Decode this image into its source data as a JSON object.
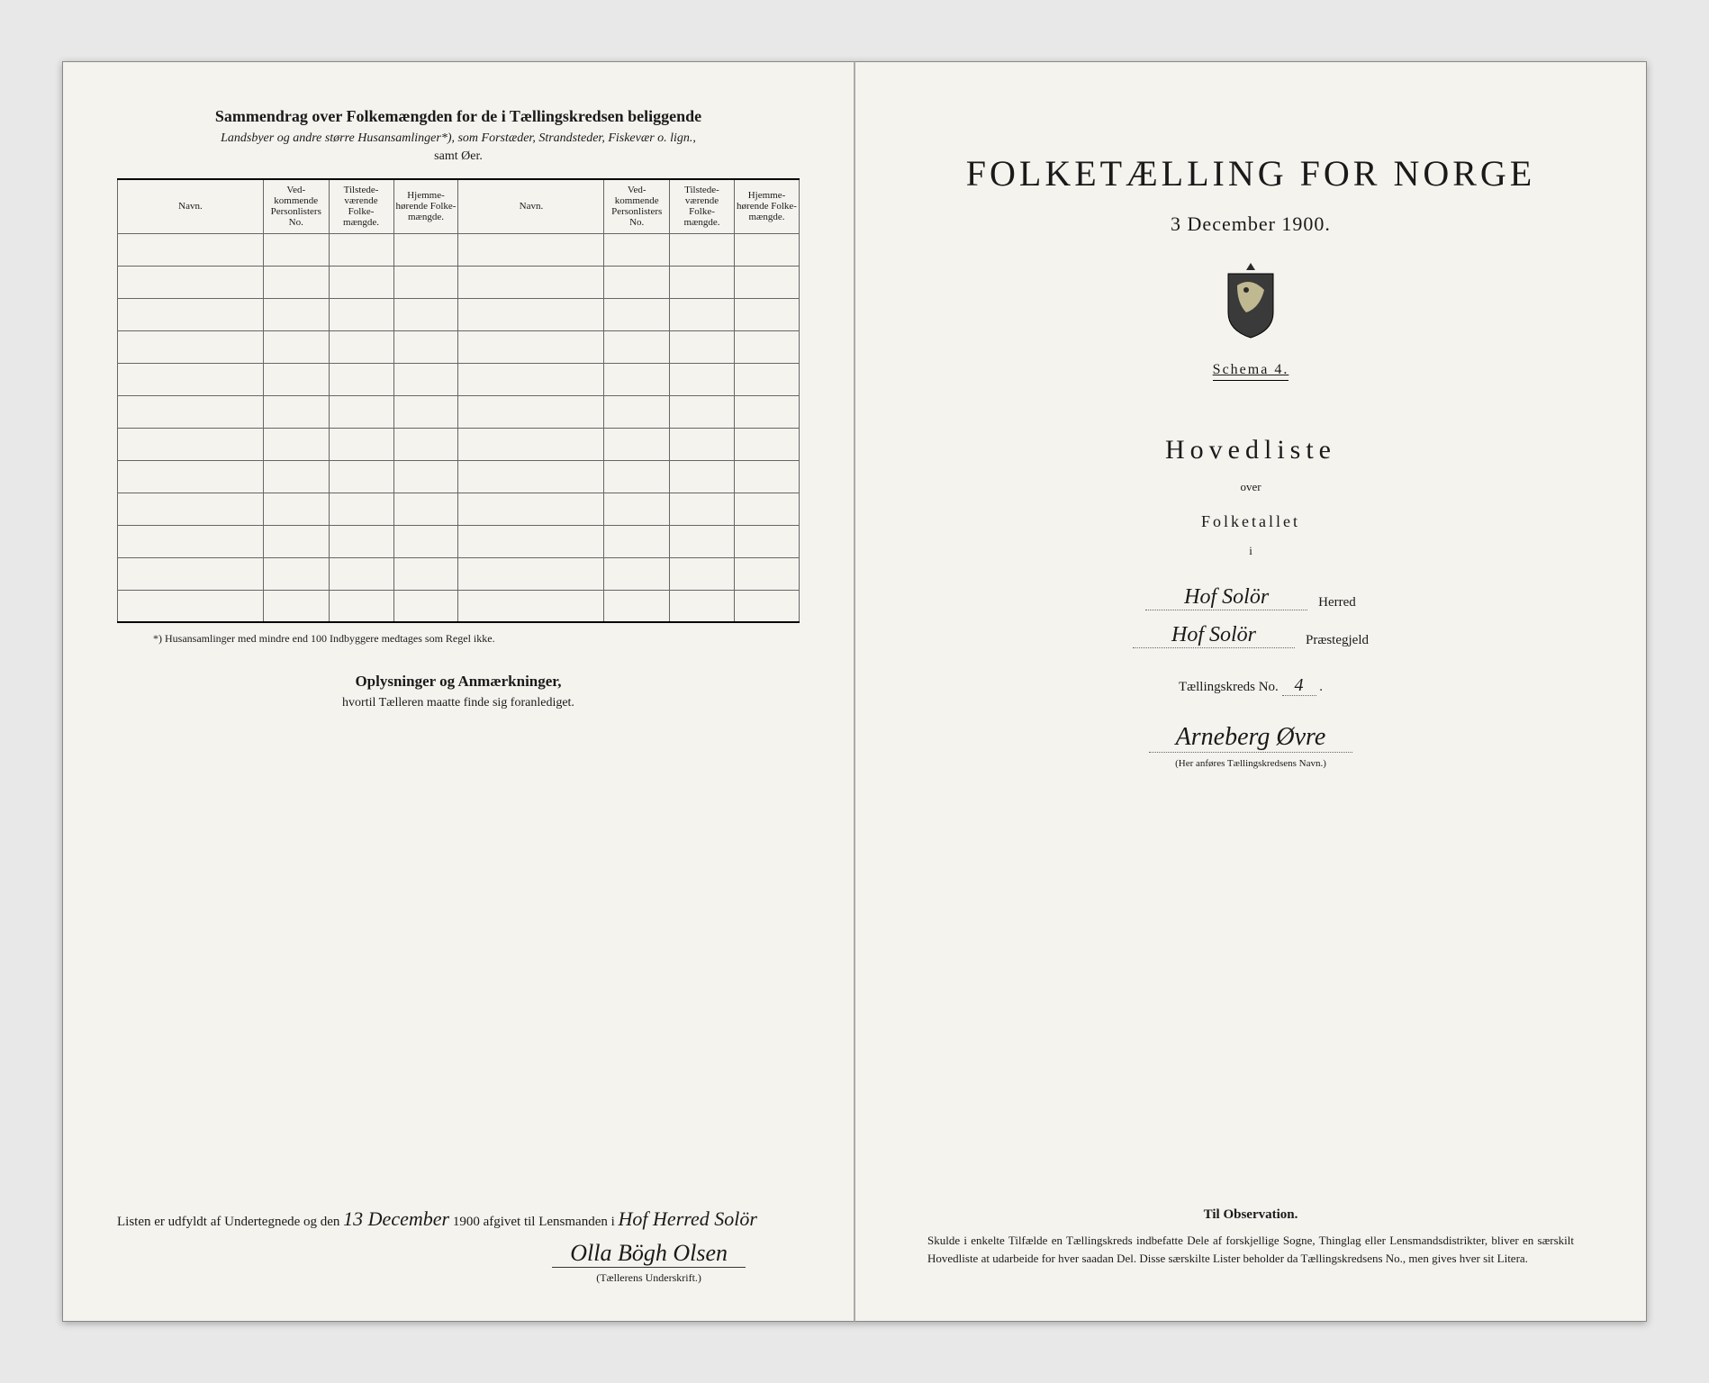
{
  "left": {
    "summary_title": "Sammendrag over Folkemængden for de i Tællingskredsen beliggende",
    "summary_subtitle": "Landsbyer og andre større Husansamlinger*), som Forstæder, Strandsteder, Fiskevær o. lign.,",
    "summary_subtitle2": "samt Øer.",
    "table_headers": {
      "navn": "Navn.",
      "vedkommende": "Ved-kommende Personlisters No.",
      "tilstede": "Tilstede-værende Folke-mængde.",
      "hjemme": "Hjemme-hørende Folke-mængde."
    },
    "footnote": "*) Husansamlinger med mindre end 100 Indbyggere medtages som Regel ikke.",
    "oplysninger_title": "Oplysninger og Anmærkninger,",
    "oplysninger_sub": "hvortil Tælleren maatte finde sig foranlediget.",
    "bottom_prefix": "Listen er udfyldt af Undertegnede og den",
    "bottom_date": "13 December",
    "bottom_year": "1900",
    "bottom_mid": "afgivet til Lensmanden i",
    "bottom_place": "Hof Herred Solör",
    "signature": "Olla Bögh Olsen",
    "signature_label": "(Tællerens Underskrift.)"
  },
  "right": {
    "main_title": "FOLKETÆLLING FOR NORGE",
    "date": "3 December 1900.",
    "schema": "Schema 4.",
    "hovedliste": "Hovedliste",
    "over": "over",
    "folketallet": "Folketallet",
    "i": "i",
    "herred_value": "Hof Solör",
    "herred_label": "Herred",
    "praeste_value": "Hof Solör",
    "praeste_label": "Præstegjeld",
    "kreds_prefix": "Tællingskreds No.",
    "kreds_no": "4",
    "kreds_name": "Arneberg Øvre",
    "kreds_hint": "(Her anføres Tællingskredsens Navn.)",
    "obs_title": "Til Observation.",
    "obs_text": "Skulde i enkelte Tilfælde en Tællingskreds indbefatte Dele af forskjellige Sogne, Thinglag eller Lensmandsdistrikter, bliver en særskilt Hovedliste at udarbeide for hver saadan Del. Disse særskilte Lister beholder da Tællingskredsens No., men gives hver sit Litera."
  },
  "table_rows": 12
}
